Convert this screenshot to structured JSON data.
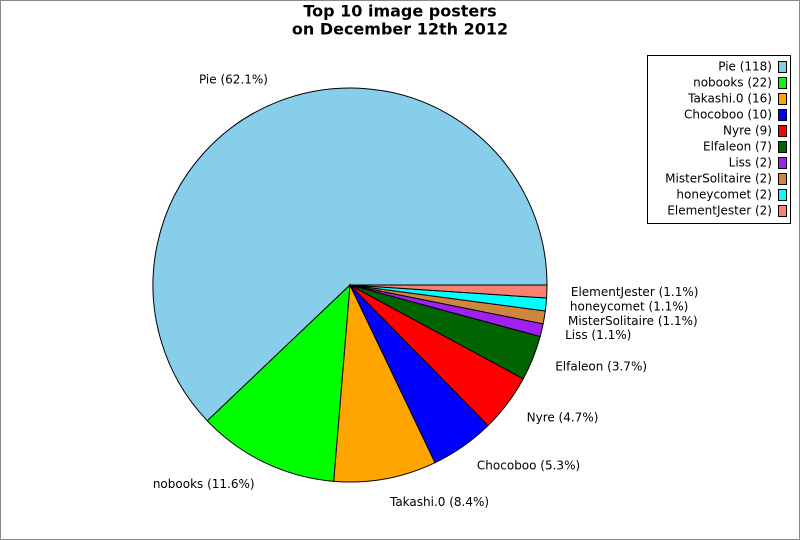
{
  "chart_data": {
    "type": "pie",
    "title": [
      "Top 10 image posters",
      "on December 12th 2012"
    ],
    "values": [
      118,
      22,
      16,
      10,
      9,
      7,
      2,
      2,
      2,
      2
    ],
    "slice_labels": [
      "Pie (62.1%)",
      "nobooks (11.6%)",
      "Takashi.0 (8.4%)",
      "Chocoboo (5.3%)",
      "Nyre (4.7%)",
      "Elfaleon (3.7%)",
      "Liss (1.1%)",
      "MisterSolitaire (1.1%)",
      "honeycomet (1.1%)",
      "ElementJester (1.1%)"
    ],
    "legend_labels": [
      "Pie (118)",
      "nobooks (22)",
      "Takashi.0 (16)",
      "Chocoboo (10)",
      "Nyre (9)",
      "Elfaleon (7)",
      "Liss (2)",
      "MisterSolitaire (2)",
      "honeycomet (2)",
      "ElementJester (2)"
    ],
    "colors": [
      "#87ceeb",
      "#00ff00",
      "#ffa500",
      "#0000ff",
      "#ff0000",
      "#006400",
      "#a020f0",
      "#cd853f",
      "#00ffff",
      "#fa8072"
    ],
    "legend": "top-right"
  }
}
